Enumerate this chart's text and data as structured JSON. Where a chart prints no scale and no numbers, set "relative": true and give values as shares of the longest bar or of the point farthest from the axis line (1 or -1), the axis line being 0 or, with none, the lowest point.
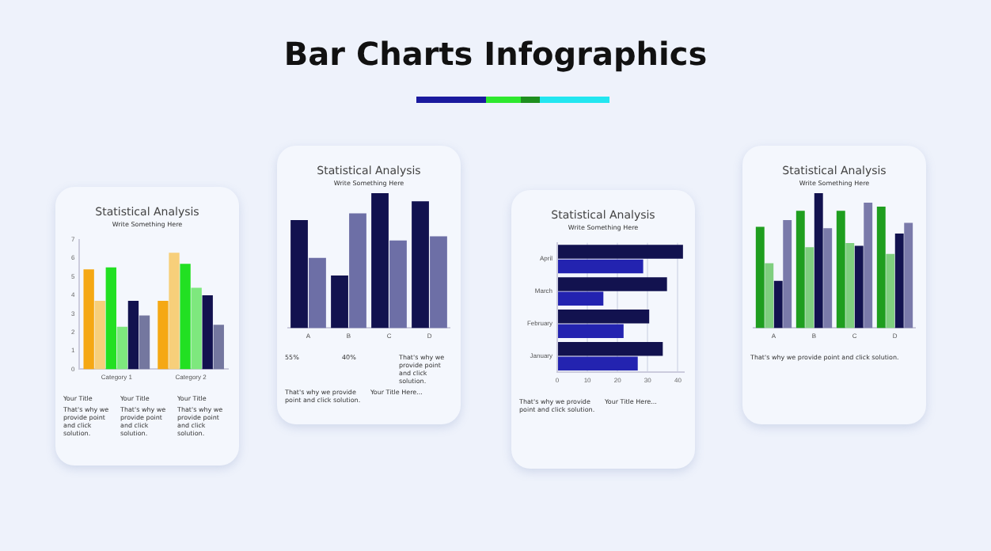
{
  "chart_data": [
    {
      "type": "bar",
      "title": "Statistical Analysis",
      "subtitle": "Write Something Here",
      "categories": [
        "Category 1",
        "Category 2"
      ],
      "series": [
        {
          "color": "#f5a814",
          "values": [
            5.4,
            3.7
          ]
        },
        {
          "color": "#f7cf7a",
          "values": [
            3.7,
            6.3
          ]
        },
        {
          "color": "#22e022",
          "values": [
            5.5,
            5.7
          ]
        },
        {
          "color": "#7ee87e",
          "values": [
            2.3,
            4.4
          ]
        },
        {
          "color": "#12124f",
          "values": [
            3.7,
            4.0
          ]
        },
        {
          "color": "#74779f",
          "values": [
            2.9,
            2.4
          ]
        }
      ],
      "ylim": [
        0,
        7
      ],
      "yticks": [
        0,
        1,
        2,
        3,
        4,
        5,
        6,
        7
      ],
      "grid": false,
      "legend": false,
      "annotations": [
        "Bar Charts Infographics",
        "Your Title",
        "Your Title",
        "Your Title",
        "That's why we provide point and click solution.",
        "That's why we provide point and click solution.",
        "That's why we provide point and click solution."
      ]
    },
    {
      "type": "bar",
      "title": "Statistical Analysis",
      "subtitle": "Write Something Here",
      "categories": [
        "A",
        "B",
        "C",
        "D"
      ],
      "relative": true,
      "series": [
        {
          "color": "#12124f",
          "values": [
            0.8,
            0.39,
            1,
            0.94
          ]
        },
        {
          "color": "#6d6fa6",
          "values": [
            0.52,
            0.85,
            0.65,
            0.68
          ]
        }
      ],
      "tick_labels": "x",
      "legend": false,
      "annotations": [
        "55%",
        "40%",
        "That's why we provide point and click solution.",
        "That's why we provide point and click solution.",
        "Your Title Here..."
      ]
    },
    {
      "type": "bar",
      "orientation": "horizontal",
      "title": "Statistical Analysis",
      "subtitle": "Write Something Here",
      "categories": [
        "April",
        "March",
        "February",
        "January"
      ],
      "series": [
        {
          "color": "#12124f",
          "values": [
            41.7,
            36.4,
            30.5,
            35
          ]
        },
        {
          "color": "#2323b0",
          "values": [
            28.5,
            15.3,
            22,
            26.7
          ]
        }
      ],
      "xlim": [
        0,
        42
      ],
      "xticks": [
        0,
        10,
        20,
        30,
        40
      ],
      "grid": "x",
      "legend": false,
      "annotations": [
        "That's why we provide point and click solution.",
        "Your Title Here..."
      ]
    },
    {
      "type": "bar",
      "title": "Statistical Analysis",
      "subtitle": "Write Something Here",
      "categories": [
        "A",
        "B",
        "C",
        "D"
      ],
      "relative": true,
      "series": [
        {
          "color": "#1f9e1f",
          "values": [
            0.75,
            0.87,
            0.87,
            0.9
          ]
        },
        {
          "color": "#7fcf7f",
          "values": [
            0.48,
            0.6,
            0.63,
            0.55
          ]
        },
        {
          "color": "#12124f",
          "values": [
            0.35,
            1,
            0.61,
            0.7
          ]
        },
        {
          "color": "#7a7aaa",
          "values": [
            0.8,
            0.74,
            0.93,
            0.78
          ]
        }
      ],
      "tick_labels": "x",
      "legend": false,
      "annotations": [
        "That's why we provide point and click solution."
      ]
    }
  ]
}
